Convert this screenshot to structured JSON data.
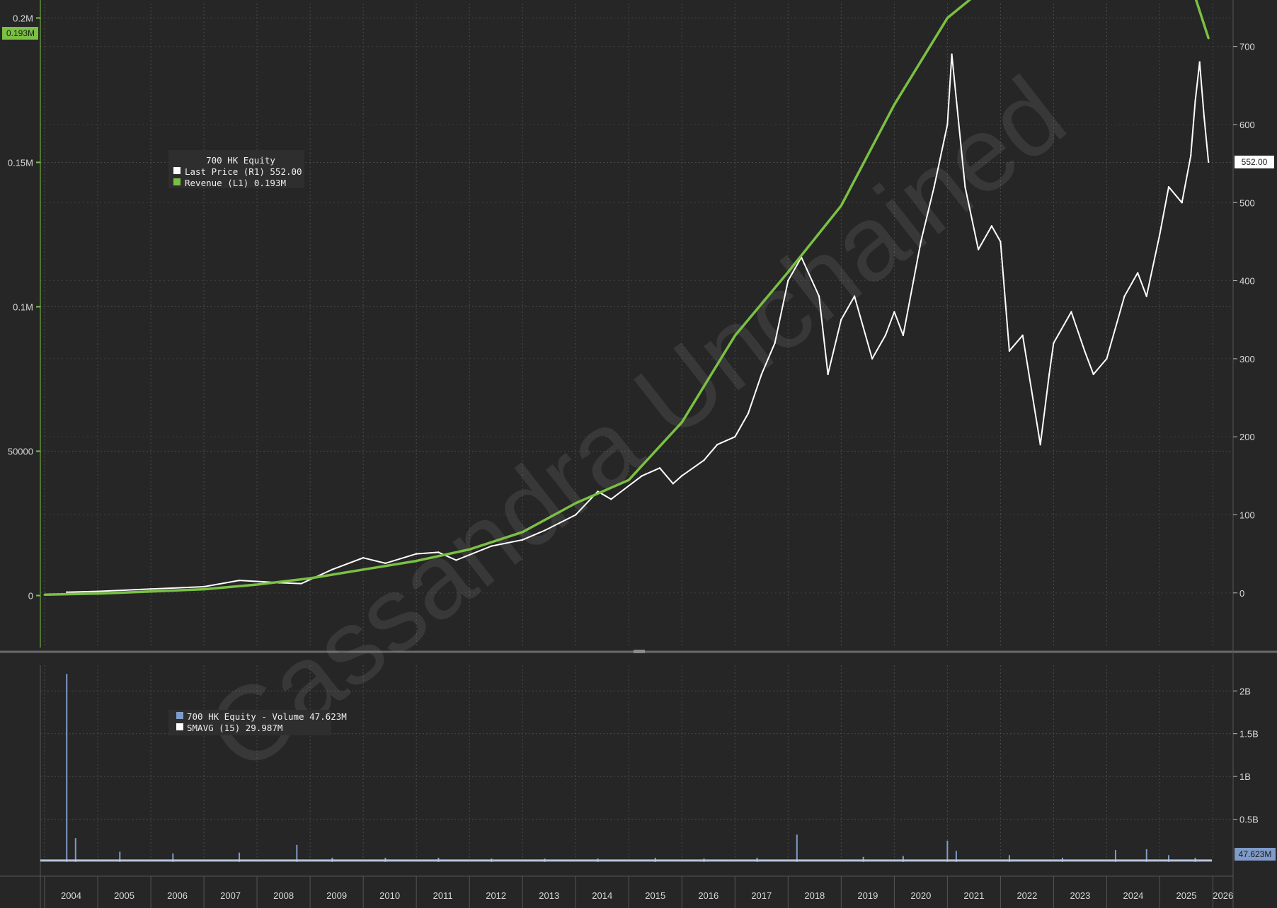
{
  "chart_data": [
    {
      "type": "line",
      "panel": "price-revenue",
      "legend_title": "700 HK Equity",
      "legend_placement": "top-left",
      "grid": true,
      "series": [
        {
          "name": "Last Price",
          "legend_label": "Last Price  (R1) 552.00",
          "axis": "right",
          "color": "#ffffff",
          "last_value": "552.00",
          "x": [
            "2004-06",
            "2005-01",
            "2006-01",
            "2007-01",
            "2007-09",
            "2008-06",
            "2008-11",
            "2009-06",
            "2010-01",
            "2010-06",
            "2011-01",
            "2011-06",
            "2011-10",
            "2012-06",
            "2013-01",
            "2013-06",
            "2014-01",
            "2014-06",
            "2014-09",
            "2015-04",
            "2015-08",
            "2015-11",
            "2016-01",
            "2016-06",
            "2016-09",
            "2017-01",
            "2017-04",
            "2017-07",
            "2017-10",
            "2018-01",
            "2018-04",
            "2018-08",
            "2018-10",
            "2019-01",
            "2019-04",
            "2019-08",
            "2019-11",
            "2020-01",
            "2020-03",
            "2020-07",
            "2020-10",
            "2021-01",
            "2021-02",
            "2021-05",
            "2021-08",
            "2021-11",
            "2022-01",
            "2022-03",
            "2022-06",
            "2022-08",
            "2022-10",
            "2022-12",
            "2023-01",
            "2023-05",
            "2023-08",
            "2023-10",
            "2024-01",
            "2024-05",
            "2024-08",
            "2024-10",
            "2025-01",
            "2025-03",
            "2025-06",
            "2025-08",
            "2025-09",
            "2025-10",
            "2025-11",
            "2025-12"
          ],
          "values": [
            1,
            2,
            5,
            8,
            16,
            13,
            12,
            30,
            45,
            38,
            50,
            52,
            42,
            60,
            68,
            80,
            100,
            130,
            120,
            150,
            160,
            140,
            150,
            170,
            190,
            200,
            230,
            280,
            320,
            400,
            430,
            380,
            280,
            350,
            380,
            300,
            330,
            360,
            330,
            450,
            520,
            600,
            690,
            520,
            440,
            470,
            450,
            310,
            330,
            260,
            190,
            280,
            320,
            360,
            310,
            280,
            300,
            380,
            410,
            380,
            460,
            520,
            500,
            560,
            630,
            680,
            610,
            552
          ]
        },
        {
          "name": "Revenue",
          "legend_label": "Revenue  (L1)     0.193M",
          "axis": "left",
          "color": "#7ac143",
          "last_value": "0.193M",
          "x": [
            "2004-01",
            "2005-01",
            "2006-01",
            "2007-01",
            "2008-01",
            "2009-01",
            "2010-01",
            "2011-01",
            "2012-01",
            "2013-01",
            "2014-01",
            "2015-01",
            "2016-01",
            "2017-01",
            "2018-01",
            "2019-01",
            "2020-01",
            "2021-01",
            "2022-01",
            "2023-01",
            "2024-01",
            "2025-01",
            "2025-12"
          ],
          "values": [
            300,
            700,
            1400,
            2200,
            3800,
            6000,
            9000,
            12000,
            16000,
            22000,
            32000,
            40000,
            60000,
            90000,
            112000,
            135000,
            170000,
            200000,
            215000,
            208000,
            228000,
            245000,
            193000
          ]
        }
      ],
      "y_left": {
        "ticks": [
          "0",
          "50000",
          "0.1M",
          "0.15M",
          "0.2M"
        ],
        "range": [
          -18000,
          205000
        ],
        "current_tag": "0.193M"
      },
      "y_right": {
        "ticks": [
          "0",
          "100",
          "200",
          "300",
          "400",
          "500",
          "600",
          "700"
        ],
        "range": [
          -70,
          755
        ],
        "current_tag": "552.00"
      }
    },
    {
      "type": "bar",
      "panel": "volume",
      "legend_placement": "top-left",
      "grid": true,
      "series": [
        {
          "name": "700 HK Equity - Volume",
          "legend_label": "700 HK Equity - Volume 47.623M",
          "color": "#7f9bc8",
          "last_value": "47.623M"
        },
        {
          "name": "SMAVG (15)",
          "legend_label": "SMAVG (15)               29.987M",
          "color": "#ffffff",
          "last_value": "29.987M"
        }
      ],
      "x": [
        "2004-06",
        "2004-08",
        "2005-06",
        "2006-06",
        "2007-09",
        "2008-10",
        "2009-06",
        "2010-06",
        "2011-06",
        "2012-06",
        "2013-06",
        "2014-06",
        "2015-07",
        "2016-06",
        "2017-06",
        "2018-03",
        "2019-06",
        "2020-03",
        "2021-01",
        "2021-03",
        "2022-03",
        "2023-03",
        "2024-03",
        "2024-10",
        "2025-03",
        "2025-09"
      ],
      "values": [
        2.2,
        0.28,
        0.12,
        0.1,
        0.11,
        0.2,
        0.05,
        0.05,
        0.05,
        0.04,
        0.04,
        0.04,
        0.05,
        0.04,
        0.05,
        0.32,
        0.06,
        0.07,
        0.25,
        0.13,
        0.08,
        0.05,
        0.14,
        0.15,
        0.08,
        0.05
      ],
      "y_right": {
        "ticks": [
          "0.5B",
          "1B",
          "1.5B",
          "2B"
        ],
        "range": [
          0,
          2.3
        ],
        "current_tag": "47.623M"
      }
    }
  ],
  "x_axis": {
    "years": [
      "2004",
      "2005",
      "2006",
      "2007",
      "2008",
      "2009",
      "2010",
      "2011",
      "2012",
      "2013",
      "2014",
      "2015",
      "2016",
      "2017",
      "2018",
      "2019",
      "2020",
      "2021",
      "2022",
      "2023",
      "2024",
      "2025",
      "2026"
    ]
  },
  "watermark": "Cassandra Unchained"
}
